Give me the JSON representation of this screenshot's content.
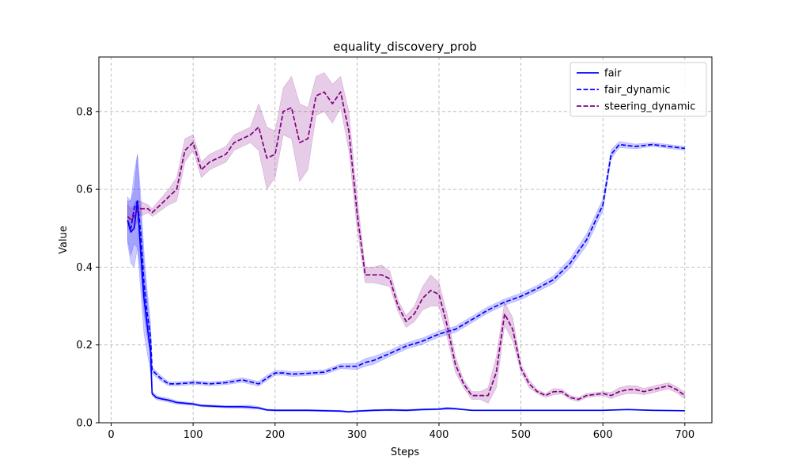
{
  "chart_data": {
    "type": "line",
    "title": "equality_discovery_prob",
    "xlabel": "Steps",
    "ylabel": "Value",
    "xlim": [
      -15,
      733
    ],
    "ylim": [
      0.0,
      0.94
    ],
    "xticks": [
      0,
      100,
      200,
      300,
      400,
      500,
      600,
      700
    ],
    "yticks": [
      0.0,
      0.2,
      0.4,
      0.6,
      0.8
    ],
    "xtick_labels": [
      "0",
      "100",
      "200",
      "300",
      "400",
      "500",
      "600",
      "700"
    ],
    "ytick_labels": [
      "0.0",
      "0.2",
      "0.4",
      "0.6",
      "0.8"
    ],
    "grid": true,
    "legend_position": "top-right",
    "series": [
      {
        "name": "fair",
        "color": "#0000ff",
        "style": "solid",
        "x": [
          20,
          24,
          28,
          32,
          36,
          40,
          44,
          48,
          50,
          55,
          60,
          70,
          80,
          90,
          100,
          110,
          120,
          140,
          160,
          170,
          180,
          190,
          200,
          220,
          240,
          260,
          280,
          290,
          300,
          320,
          340,
          360,
          380,
          400,
          410,
          420,
          440,
          460,
          500,
          550,
          600,
          630,
          660,
          700
        ],
        "y": [
          0.52,
          0.49,
          0.5,
          0.57,
          0.44,
          0.32,
          0.25,
          0.18,
          0.075,
          0.065,
          0.062,
          0.058,
          0.052,
          0.05,
          0.048,
          0.044,
          0.043,
          0.041,
          0.041,
          0.04,
          0.038,
          0.033,
          0.032,
          0.032,
          0.032,
          0.031,
          0.03,
          0.028,
          0.03,
          0.032,
          0.033,
          0.032,
          0.034,
          0.035,
          0.037,
          0.036,
          0.032,
          0.032,
          0.032,
          0.032,
          0.032,
          0.034,
          0.032,
          0.031
        ],
        "band": [
          0.06,
          0.08,
          0.1,
          0.12,
          0.1,
          0.09,
          0.07,
          0.05,
          0.005,
          0.005,
          0.005,
          0.005,
          0.004,
          0.004,
          0.003,
          0.003,
          0.003,
          0.003,
          0.004,
          0.005,
          0.003,
          0.002,
          0.002,
          0.002,
          0.002,
          0.002,
          0.002,
          0.002,
          0.002,
          0.002,
          0.002,
          0.002,
          0.002,
          0.002,
          0.003,
          0.002,
          0.001,
          0.001,
          0.001,
          0.001,
          0.001,
          0.001,
          0.001,
          0.001
        ]
      },
      {
        "name": "fair_dynamic",
        "color": "#0000ff",
        "style": "dashed",
        "x": [
          20,
          24,
          28,
          32,
          36,
          40,
          44,
          48,
          50,
          60,
          70,
          80,
          100,
          110,
          120,
          140,
          160,
          180,
          190,
          200,
          210,
          220,
          240,
          260,
          280,
          300,
          310,
          320,
          340,
          360,
          380,
          400,
          420,
          440,
          460,
          480,
          500,
          520,
          540,
          560,
          580,
          600,
          610,
          620,
          640,
          660,
          680,
          700
        ],
        "y": [
          0.52,
          0.5,
          0.55,
          0.57,
          0.49,
          0.36,
          0.28,
          0.22,
          0.135,
          0.115,
          0.1,
          0.1,
          0.103,
          0.102,
          0.1,
          0.103,
          0.11,
          0.1,
          0.115,
          0.128,
          0.128,
          0.125,
          0.127,
          0.13,
          0.145,
          0.145,
          0.155,
          0.16,
          0.178,
          0.197,
          0.21,
          0.228,
          0.24,
          0.265,
          0.29,
          0.31,
          0.325,
          0.345,
          0.368,
          0.41,
          0.47,
          0.56,
          0.69,
          0.715,
          0.71,
          0.715,
          0.71,
          0.705
        ],
        "band": [
          0.05,
          0.07,
          0.09,
          0.12,
          0.1,
          0.08,
          0.06,
          0.04,
          0.008,
          0.007,
          0.005,
          0.005,
          0.005,
          0.005,
          0.005,
          0.005,
          0.006,
          0.006,
          0.007,
          0.006,
          0.006,
          0.006,
          0.006,
          0.006,
          0.006,
          0.008,
          0.01,
          0.01,
          0.008,
          0.008,
          0.008,
          0.008,
          0.008,
          0.008,
          0.008,
          0.008,
          0.008,
          0.008,
          0.01,
          0.012,
          0.015,
          0.015,
          0.012,
          0.008,
          0.006,
          0.005,
          0.005,
          0.005
        ]
      },
      {
        "name": "steering_dynamic",
        "color": "#800080",
        "style": "dashed",
        "x": [
          20,
          25,
          30,
          35,
          40,
          45,
          50,
          60,
          70,
          80,
          90,
          100,
          110,
          120,
          130,
          140,
          150,
          160,
          170,
          180,
          190,
          200,
          210,
          220,
          230,
          240,
          250,
          260,
          270,
          280,
          290,
          300,
          310,
          320,
          330,
          340,
          350,
          360,
          370,
          380,
          390,
          400,
          410,
          420,
          430,
          440,
          450,
          460,
          470,
          480,
          490,
          500,
          510,
          520,
          530,
          540,
          550,
          560,
          570,
          580,
          600,
          610,
          620,
          630,
          640,
          650,
          660,
          670,
          680,
          690,
          700
        ],
        "y": [
          0.53,
          0.52,
          0.54,
          0.55,
          0.55,
          0.55,
          0.54,
          0.56,
          0.58,
          0.6,
          0.7,
          0.72,
          0.65,
          0.67,
          0.68,
          0.69,
          0.72,
          0.73,
          0.74,
          0.76,
          0.68,
          0.69,
          0.8,
          0.81,
          0.72,
          0.73,
          0.84,
          0.85,
          0.82,
          0.85,
          0.75,
          0.54,
          0.38,
          0.38,
          0.38,
          0.37,
          0.3,
          0.26,
          0.28,
          0.32,
          0.34,
          0.33,
          0.25,
          0.15,
          0.1,
          0.07,
          0.07,
          0.07,
          0.13,
          0.28,
          0.24,
          0.14,
          0.1,
          0.08,
          0.07,
          0.08,
          0.08,
          0.065,
          0.06,
          0.07,
          0.075,
          0.07,
          0.08,
          0.085,
          0.085,
          0.08,
          0.085,
          0.09,
          0.095,
          0.085,
          0.07
        ],
        "band": [
          0.03,
          0.03,
          0.03,
          0.02,
          0.015,
          0.01,
          0.01,
          0.015,
          0.02,
          0.03,
          0.03,
          0.02,
          0.02,
          0.02,
          0.02,
          0.02,
          0.02,
          0.02,
          0.02,
          0.06,
          0.08,
          0.06,
          0.06,
          0.08,
          0.1,
          0.08,
          0.05,
          0.05,
          0.05,
          0.04,
          0.05,
          0.04,
          0.02,
          0.02,
          0.025,
          0.02,
          0.015,
          0.015,
          0.02,
          0.03,
          0.04,
          0.03,
          0.03,
          0.02,
          0.01,
          0.01,
          0.01,
          0.02,
          0.04,
          0.03,
          0.03,
          0.01,
          0.01,
          0.005,
          0.005,
          0.008,
          0.006,
          0.005,
          0.005,
          0.005,
          0.005,
          0.008,
          0.01,
          0.01,
          0.01,
          0.008,
          0.008,
          0.008,
          0.008,
          0.008,
          0.008
        ]
      }
    ]
  }
}
